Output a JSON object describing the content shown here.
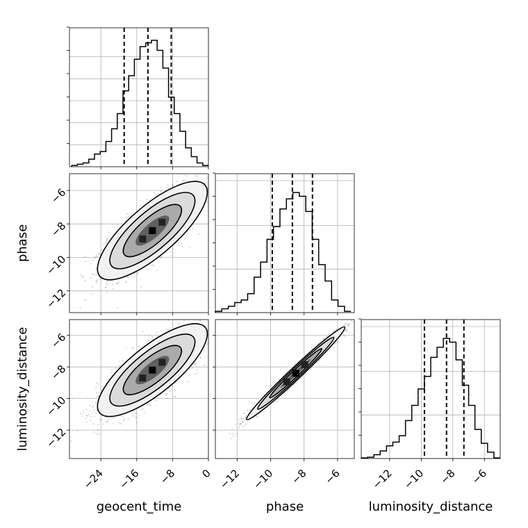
{
  "chart_data": {
    "type": "corner",
    "parameters": [
      {
        "name": "geocent_time",
        "label": "geocent_time",
        "range": [
          -31,
          0
        ],
        "ticks": [
          -24,
          -16,
          -8,
          0
        ],
        "quantiles": [
          -18.8,
          -13.5,
          -8.3
        ],
        "hist": [
          0.01,
          0.02,
          0.03,
          0.06,
          0.1,
          0.12,
          0.2,
          0.3,
          0.42,
          0.6,
          0.72,
          0.85,
          0.95,
          0.98,
          1.0,
          0.92,
          0.78,
          0.55,
          0.42,
          0.28,
          0.15,
          0.08,
          0.03,
          0.01
        ],
        "hist_range": [
          -30.5,
          0
        ]
      },
      {
        "name": "phase",
        "label": "phase",
        "range": [
          -13.3,
          -5.0
        ],
        "ticks": [
          -12,
          -10,
          -8,
          -6
        ],
        "quantiles": [
          -9.9,
          -8.7,
          -7.5
        ],
        "hist": [
          0.01,
          0.03,
          0.05,
          0.08,
          0.1,
          0.15,
          0.28,
          0.4,
          0.58,
          0.68,
          0.82,
          0.9,
          0.95,
          0.92,
          0.8,
          0.58,
          0.38,
          0.25,
          0.1,
          0.05,
          0.01
        ],
        "hist_range": [
          -13.3,
          -5.2
        ]
      },
      {
        "name": "luminosity_distance",
        "label": "luminosity_distance",
        "range": [
          -13.8,
          -5.0
        ],
        "ticks": [
          -12,
          -10,
          -8,
          -6
        ],
        "quantiles": [
          -9.8,
          -8.4,
          -7.3
        ],
        "hist": [
          0.005,
          0.01,
          0.03,
          0.06,
          0.1,
          0.13,
          0.18,
          0.3,
          0.42,
          0.55,
          0.65,
          0.8,
          0.88,
          0.95,
          0.92,
          0.78,
          0.58,
          0.42,
          0.23,
          0.12,
          0.05,
          0.005
        ],
        "hist_range": [
          -13.8,
          -5.0
        ]
      }
    ],
    "pairs": [
      {
        "x": "geocent_time",
        "y": "phase",
        "center": [
          -12.5,
          -8.4
        ],
        "sx": 5.0,
        "sy": 1.2,
        "rho": 0.78
      },
      {
        "x": "geocent_time",
        "y": "luminosity_distance",
        "center": [
          -12.5,
          -8.2
        ],
        "sx": 5.0,
        "sy": 1.2,
        "rho": 0.78
      },
      {
        "x": "phase",
        "y": "luminosity_distance",
        "center": [
          -8.5,
          -8.4
        ],
        "sx": 1.2,
        "sy": 1.2,
        "rho": 0.985
      }
    ],
    "grid": true
  }
}
